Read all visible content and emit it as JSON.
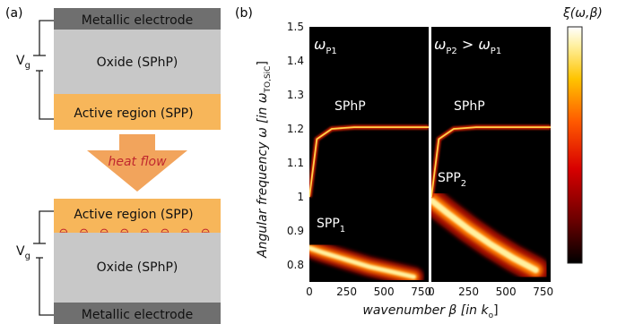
{
  "panel_a": {
    "label": "(a)",
    "top_stack": {
      "electrode": "Metallic electrode",
      "oxide": "Oxide (SPhP)",
      "active": "Active region (SPP)"
    },
    "heat_flow": "heat flow",
    "bottom_stack": {
      "active": "Active region (SPP)",
      "oxide": "Oxide (SPhP)",
      "electrode": "Metallic electrode"
    },
    "gate_voltage": {
      "main": "V",
      "sub": "g"
    },
    "charge_symbol": "⊖",
    "charge_count": 8,
    "colors": {
      "electrode": "#6f6f6f",
      "oxide": "#c8c8c8",
      "active": "#f7b65a",
      "arrow": "#f2a45c",
      "heat_text": "#c0282e",
      "charge": "#c0282e"
    }
  },
  "panel_b": {
    "label": "(b)",
    "y_axis_label": "Angular frequency ω [in ω",
    "y_axis_sub": "TO,SiC",
    "y_axis_close": "]",
    "x_axis_label": "wavenumber β [in k",
    "x_axis_sub": "o",
    "x_axis_close": "]",
    "colorbar_label": "ξ(ω,β)",
    "left_map": {
      "title_main": "ω",
      "title_sub": "P1",
      "labels": [
        {
          "main": "SPhP",
          "sub": ""
        },
        {
          "main": "SPP",
          "sub": "1"
        }
      ]
    },
    "right_map": {
      "title_a": "ω",
      "title_a_sub": "P2",
      "title_op": " > ",
      "title_b": "ω",
      "title_b_sub": "P1",
      "labels": [
        {
          "main": "SPhP",
          "sub": ""
        },
        {
          "main": "SPP",
          "sub": "2"
        }
      ]
    }
  },
  "chart_data": {
    "type": "heatmap",
    "xlabel": "wavenumber β [in k_o]",
    "ylabel": "Angular frequency ω [in ω_TO,SiC]",
    "colorbar": "ξ(ω,β)",
    "xlim": [
      0,
      800
    ],
    "ylim": [
      0.75,
      1.5
    ],
    "x_ticks": [
      0,
      250,
      500,
      750
    ],
    "y_ticks": [
      0.8,
      0.9,
      1,
      1.1,
      1.2,
      1.3,
      1.4,
      1.5
    ],
    "panels": [
      {
        "name": "ω_P1",
        "sphp_branch": {
          "x": [
            0,
            50,
            150,
            300,
            500,
            800
          ],
          "y": [
            1.0,
            1.17,
            1.2,
            1.205,
            1.205,
            1.205
          ]
        },
        "spp_branch": {
          "x": [
            0,
            100,
            250,
            400,
            550,
            700
          ],
          "y": [
            0.85,
            0.835,
            0.815,
            0.795,
            0.78,
            0.765
          ]
        }
      },
      {
        "name": "ω_P2 > ω_P1",
        "sphp_branch": {
          "x": [
            0,
            50,
            150,
            300,
            500,
            800
          ],
          "y": [
            1.0,
            1.17,
            1.2,
            1.205,
            1.205,
            1.205
          ]
        },
        "spp_branch": {
          "x": [
            0,
            100,
            250,
            400,
            550,
            700
          ],
          "y": [
            0.99,
            0.955,
            0.905,
            0.86,
            0.82,
            0.785
          ]
        }
      }
    ],
    "colormap": [
      "#000000",
      "#5a0000",
      "#b80000",
      "#ff2000",
      "#ff8c00",
      "#ffd000",
      "#ffffe0",
      "#ffffff"
    ]
  }
}
